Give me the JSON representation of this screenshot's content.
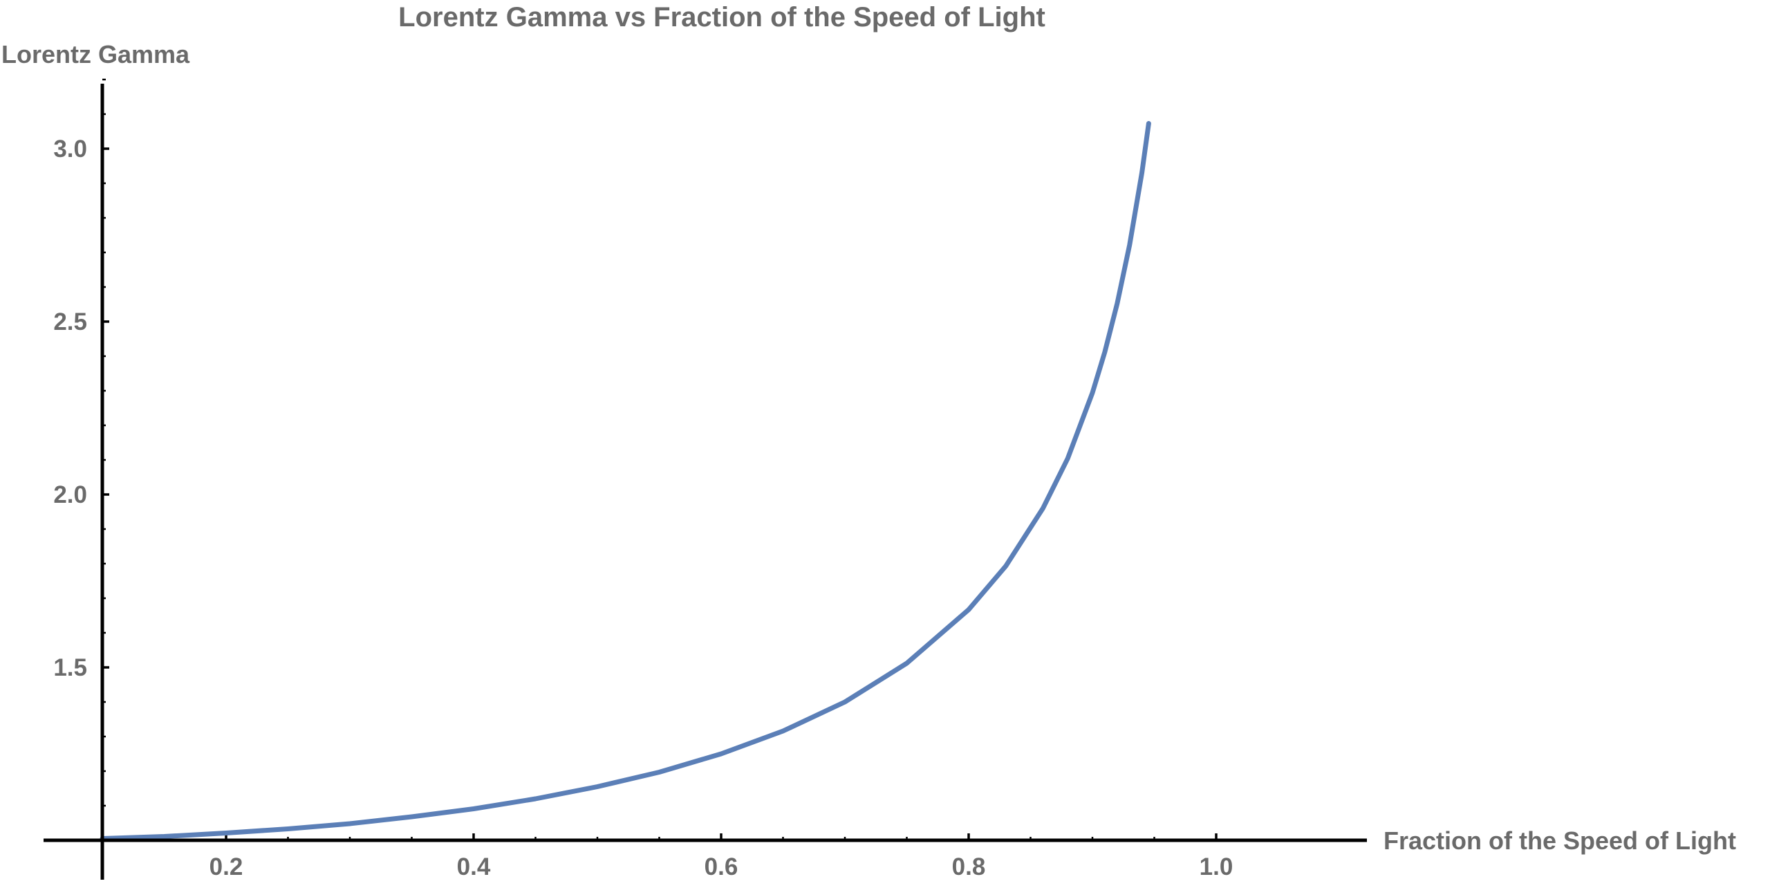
{
  "chart_data": {
    "type": "line",
    "title": "Lorentz Gamma vs Fraction of the Speed of Light",
    "xlabel": "Fraction of the Speed of Light",
    "ylabel": "Lorentz Gamma",
    "xlim": [
      0.1,
      1.0
    ],
    "ylim": [
      1.0,
      3.2
    ],
    "x_origin": 0.1,
    "y_origin": 1.0,
    "x_ticks": [
      0.2,
      0.4,
      0.6,
      0.8,
      1.0
    ],
    "x_tick_labels": [
      "0.2",
      "0.4",
      "0.6",
      "0.8",
      "1.0"
    ],
    "y_ticks": [
      1.5,
      2.0,
      2.5,
      3.0
    ],
    "y_tick_labels": [
      "1.5",
      "2.0",
      "2.5",
      "3.0"
    ],
    "grid": false,
    "legend": "none",
    "colors": {
      "line": "#5b7fb7",
      "axis": "#000000",
      "text": "#6a6a6a"
    },
    "series": [
      {
        "x": [
          0.1,
          0.15,
          0.2,
          0.25,
          0.3,
          0.35,
          0.4,
          0.45,
          0.5,
          0.55,
          0.6,
          0.65,
          0.7,
          0.75,
          0.8,
          0.83,
          0.86,
          0.88,
          0.9,
          0.91,
          0.92,
          0.93,
          0.94,
          0.9455
        ],
        "values": [
          1.005,
          1.011,
          1.021,
          1.033,
          1.048,
          1.068,
          1.091,
          1.12,
          1.155,
          1.197,
          1.25,
          1.316,
          1.4,
          1.512,
          1.667,
          1.793,
          1.96,
          2.104,
          2.294,
          2.412,
          2.552,
          2.721,
          2.931,
          3.073
        ]
      }
    ]
  }
}
